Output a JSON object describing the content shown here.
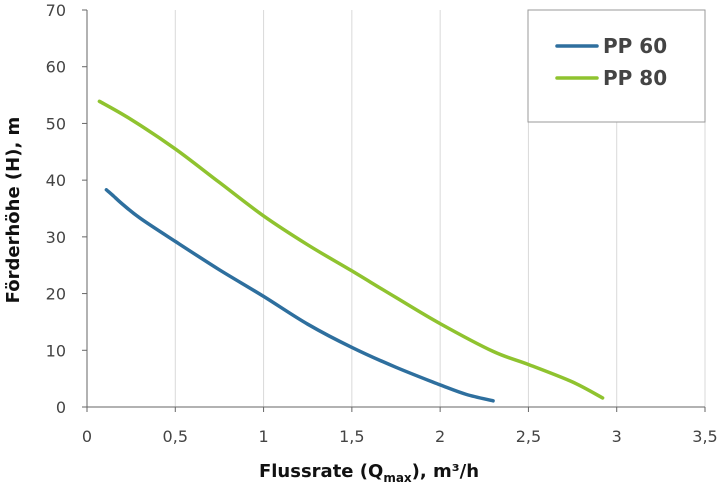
{
  "chart_data": {
    "type": "line",
    "xlabel_parts": {
      "main": "Flussrate (Q",
      "sub": "max",
      "rest": "), m³/h"
    },
    "ylabel": "Förderhöhe (H), m",
    "xlim": [
      0,
      3.5
    ],
    "ylim": [
      0,
      70
    ],
    "xticks": [
      0,
      0.5,
      1,
      1.5,
      2,
      2.5,
      3,
      3.5
    ],
    "xtick_labels": [
      "0",
      "0,5",
      "1",
      "1,5",
      "2",
      "2,5",
      "3",
      "3,5"
    ],
    "yticks": [
      0,
      10,
      20,
      30,
      40,
      50,
      60,
      70
    ],
    "ytick_labels": [
      "0",
      "10",
      "20",
      "30",
      "40",
      "50",
      "60",
      "70"
    ],
    "grid": "vertical",
    "legend_position": "top-right",
    "series": [
      {
        "name": "PP 60",
        "color": "#2e6f9e",
        "points": [
          [
            0.11,
            38.3
          ],
          [
            0.15,
            37.2
          ],
          [
            0.2,
            35.8
          ],
          [
            0.3,
            33.3
          ],
          [
            0.5,
            29.2
          ],
          [
            0.75,
            24.2
          ],
          [
            1.0,
            19.5
          ],
          [
            1.25,
            14.6
          ],
          [
            1.5,
            10.5
          ],
          [
            1.75,
            7.0
          ],
          [
            2.0,
            3.9
          ],
          [
            2.15,
            2.2
          ],
          [
            2.3,
            1.1
          ]
        ]
      },
      {
        "name": "PP 80",
        "color": "#8fc32f",
        "points": [
          [
            0.07,
            53.9
          ],
          [
            0.25,
            50.7
          ],
          [
            0.5,
            45.5
          ],
          [
            0.75,
            39.6
          ],
          [
            1.0,
            33.7
          ],
          [
            1.25,
            28.6
          ],
          [
            1.5,
            24.0
          ],
          [
            1.75,
            19.3
          ],
          [
            2.0,
            14.7
          ],
          [
            2.3,
            9.8
          ],
          [
            2.5,
            7.5
          ],
          [
            2.75,
            4.4
          ],
          [
            2.92,
            1.6
          ]
        ]
      }
    ]
  }
}
